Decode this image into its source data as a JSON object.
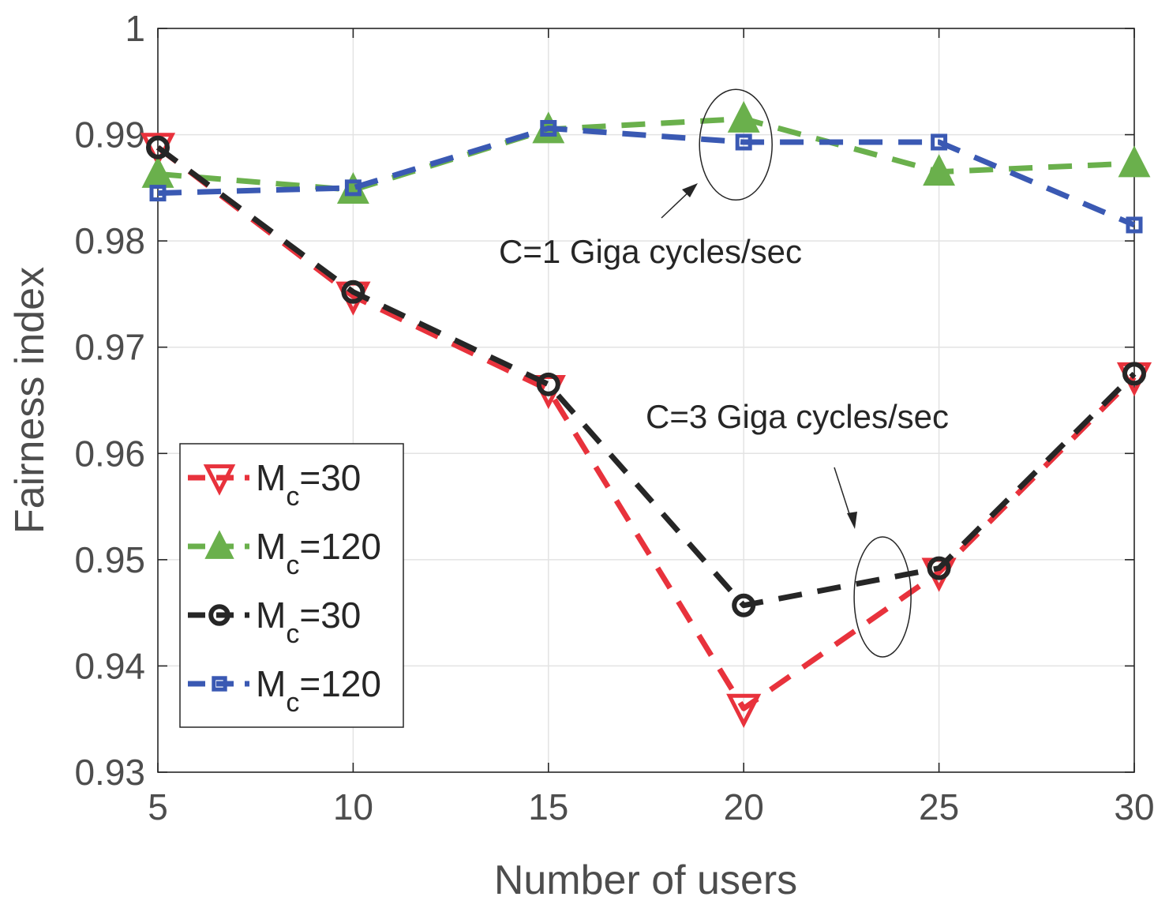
{
  "chart_data": {
    "type": "line",
    "title": "",
    "xlabel": "Number of users",
    "ylabel": "Fairness index",
    "x": [
      5,
      10,
      15,
      20,
      25,
      30
    ],
    "xticks": [
      "5",
      "10",
      "15",
      "20",
      "25",
      "30"
    ],
    "yticks": [
      "0.93",
      "0.94",
      "0.95",
      "0.96",
      "0.97",
      "0.98",
      "0.99",
      "1"
    ],
    "xlim": [
      5,
      30
    ],
    "ylim": [
      0.93,
      1.0
    ],
    "grid": true,
    "legend_position": "left",
    "series": [
      {
        "name": "M_c=30",
        "legend_main": "M",
        "legend_sub": "c",
        "legend_value": "=30",
        "group": "C=3 Giga cycles/sec",
        "color": "#e8323c",
        "marker": "triangle-down",
        "values": [
          0.9888,
          0.9748,
          0.966,
          0.936,
          0.9488,
          0.9672
        ]
      },
      {
        "name": "M_c=120",
        "legend_main": "M",
        "legend_sub": "c",
        "legend_value": "=120",
        "group": "C=1 Giga cycles/sec",
        "color": "#6ab04c",
        "marker": "triangle-up",
        "values": [
          0.9863,
          0.9848,
          0.9905,
          0.9915,
          0.9865,
          0.9873
        ]
      },
      {
        "name": "M_c=30",
        "legend_main": "M",
        "legend_sub": "c",
        "legend_value": "=30",
        "group": "C=3 Giga cycles/sec",
        "color": "#262626",
        "marker": "circle",
        "values": [
          0.9888,
          0.9752,
          0.9665,
          0.9457,
          0.9492,
          0.9675
        ]
      },
      {
        "name": "M_c=120",
        "legend_main": "M",
        "legend_sub": "c",
        "legend_value": "=120",
        "group": "C=1 Giga cycles/sec",
        "color": "#3a59b3",
        "marker": "square",
        "values": [
          0.9845,
          0.985,
          0.9906,
          0.9893,
          0.9893,
          0.9815
        ]
      }
    ],
    "annotations": [
      {
        "text": "C=1 Giga cycles/sec",
        "target_x": 20,
        "target_y": 0.9898
      },
      {
        "text": "C=3 Giga cycles/sec",
        "target_x": 24,
        "target_y": 0.9465
      }
    ]
  }
}
